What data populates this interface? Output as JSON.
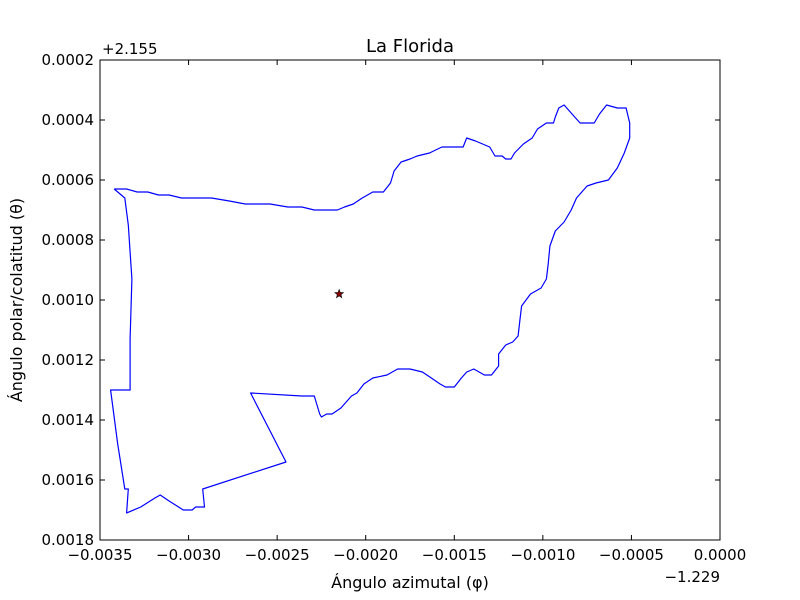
{
  "chart_data": {
    "type": "line",
    "title": "La Florida",
    "xlabel": "Ángulo azimutal (φ)",
    "ylabel": "Ángulo polar/colatitud (θ)",
    "x_offset_label": "−1.229",
    "y_offset_label": "+2.155",
    "xlim": [
      -0.0035,
      0.0
    ],
    "ylim": [
      0.0002,
      0.0018
    ],
    "y_inverted": true,
    "grid": false,
    "x_ticks": [
      -0.0035,
      -0.003,
      -0.0025,
      -0.002,
      -0.0015,
      -0.001,
      -0.0005,
      0.0
    ],
    "x_tick_labels": [
      "−0.0035",
      "−0.0030",
      "−0.0025",
      "−0.0020",
      "−0.0015",
      "−0.0010",
      "−0.0005",
      "0.0000"
    ],
    "y_ticks": [
      0.0002,
      0.0004,
      0.0006,
      0.0008,
      0.001,
      0.0012,
      0.0014,
      0.0016,
      0.0018
    ],
    "y_tick_labels": [
      "0.0002",
      "0.0004",
      "0.0006",
      "0.0008",
      "0.0010",
      "0.0012",
      "0.0014",
      "0.0016",
      "0.0018"
    ],
    "boundary_color": "#0000ff",
    "marker_color": "#8b0000",
    "boundary": [
      [
        -0.00342,
        0.00063
      ],
      [
        -0.00336,
        0.00066
      ],
      [
        -0.00334,
        0.00075
      ],
      [
        -0.00332,
        0.00093
      ],
      [
        -0.00333,
        0.00113
      ],
      [
        -0.00333,
        0.0013
      ],
      [
        -0.00344,
        0.0013
      ],
      [
        -0.0034,
        0.00148
      ],
      [
        -0.00336,
        0.00163
      ],
      [
        -0.00334,
        0.00163
      ],
      [
        -0.00335,
        0.00171
      ],
      [
        -0.00327,
        0.00169
      ],
      [
        -0.00319,
        0.00166
      ],
      [
        -0.00316,
        0.00165
      ],
      [
        -0.00311,
        0.00167
      ],
      [
        -0.00303,
        0.0017
      ],
      [
        -0.00298,
        0.0017
      ],
      [
        -0.00296,
        0.00169
      ],
      [
        -0.00291,
        0.00169
      ],
      [
        -0.00292,
        0.00163
      ],
      [
        -0.00245,
        0.00154
      ],
      [
        -0.00265,
        0.00131
      ],
      [
        -0.00236,
        0.00132
      ],
      [
        -0.00229,
        0.00132
      ],
      [
        -0.00228,
        0.00134
      ],
      [
        -0.00226,
        0.00138
      ],
      [
        -0.00225,
        0.00139
      ],
      [
        -0.00222,
        0.00138
      ],
      [
        -0.00219,
        0.00138
      ],
      [
        -0.00214,
        0.00136
      ],
      [
        -0.00208,
        0.00132
      ],
      [
        -0.00205,
        0.00131
      ],
      [
        -0.00201,
        0.00128
      ],
      [
        -0.00196,
        0.00126
      ],
      [
        -0.00188,
        0.00125
      ],
      [
        -0.00182,
        0.00123
      ],
      [
        -0.00175,
        0.00123
      ],
      [
        -0.00168,
        0.00124
      ],
      [
        -0.00163,
        0.00126
      ],
      [
        -0.00158,
        0.00128
      ],
      [
        -0.00155,
        0.00129
      ],
      [
        -0.0015,
        0.00129
      ],
      [
        -0.00146,
        0.00126
      ],
      [
        -0.00143,
        0.00124
      ],
      [
        -0.00139,
        0.00123
      ],
      [
        -0.00133,
        0.00125
      ],
      [
        -0.00129,
        0.00125
      ],
      [
        -0.00125,
        0.00122
      ],
      [
        -0.00125,
        0.00118
      ],
      [
        -0.00121,
        0.00115
      ],
      [
        -0.00117,
        0.00114
      ],
      [
        -0.00114,
        0.00112
      ],
      [
        -0.00113,
        0.00107
      ],
      [
        -0.00112,
        0.00102
      ],
      [
        -0.00107,
        0.00098
      ],
      [
        -0.00101,
        0.00096
      ],
      [
        -0.00098,
        0.00093
      ],
      [
        -0.00097,
        0.00088
      ],
      [
        -0.00096,
        0.00082
      ],
      [
        -0.00093,
        0.00077
      ],
      [
        -0.00088,
        0.00074
      ],
      [
        -0.00084,
        0.0007
      ],
      [
        -0.00081,
        0.00066
      ],
      [
        -0.00075,
        0.00062
      ],
      [
        -0.0007,
        0.00061
      ],
      [
        -0.00063,
        0.0006
      ],
      [
        -0.00058,
        0.00056
      ],
      [
        -0.00054,
        0.00051
      ],
      [
        -0.00051,
        0.00046
      ],
      [
        -0.00051,
        0.00041
      ],
      [
        -0.00053,
        0.00036
      ],
      [
        -0.00058,
        0.00036
      ],
      [
        -0.00064,
        0.00035
      ],
      [
        -0.00068,
        0.00038
      ],
      [
        -0.00071,
        0.00041
      ],
      [
        -0.00079,
        0.00041
      ],
      [
        -0.00082,
        0.00039
      ],
      [
        -0.00085,
        0.00037
      ],
      [
        -0.00088,
        0.00035
      ],
      [
        -0.00091,
        0.00036
      ],
      [
        -0.00093,
        0.00039
      ],
      [
        -0.00094,
        0.00041
      ],
      [
        -0.00098,
        0.00041
      ],
      [
        -0.00103,
        0.00043
      ],
      [
        -0.00106,
        0.00046
      ],
      [
        -0.00111,
        0.00048
      ],
      [
        -0.00116,
        0.00051
      ],
      [
        -0.00118,
        0.00053
      ],
      [
        -0.00121,
        0.00053
      ],
      [
        -0.00123,
        0.00052
      ],
      [
        -0.00127,
        0.00052
      ],
      [
        -0.0013,
        0.00049
      ],
      [
        -0.00134,
        0.00048
      ],
      [
        -0.00138,
        0.00047
      ],
      [
        -0.00143,
        0.00046
      ],
      [
        -0.00145,
        0.00049
      ],
      [
        -0.00147,
        0.00049
      ],
      [
        -0.00151,
        0.00049
      ],
      [
        -0.00157,
        0.00049
      ],
      [
        -0.00164,
        0.00051
      ],
      [
        -0.00171,
        0.00052
      ],
      [
        -0.00175,
        0.00053
      ],
      [
        -0.0018,
        0.00054
      ],
      [
        -0.00184,
        0.00057
      ],
      [
        -0.00186,
        0.00061
      ],
      [
        -0.0019,
        0.00064
      ],
      [
        -0.00196,
        0.00064
      ],
      [
        -0.00202,
        0.00066
      ],
      [
        -0.00207,
        0.00068
      ],
      [
        -0.00212,
        0.00069
      ],
      [
        -0.00216,
        0.0007
      ],
      [
        -0.00222,
        0.0007
      ],
      [
        -0.00229,
        0.0007
      ],
      [
        -0.00236,
        0.00069
      ],
      [
        -0.00244,
        0.00069
      ],
      [
        -0.00254,
        0.00068
      ],
      [
        -0.00262,
        0.00068
      ],
      [
        -0.00268,
        0.00068
      ],
      [
        -0.00277,
        0.00067
      ],
      [
        -0.00287,
        0.00066
      ],
      [
        -0.00296,
        0.00066
      ],
      [
        -0.00304,
        0.00066
      ],
      [
        -0.00311,
        0.00065
      ],
      [
        -0.00317,
        0.00065
      ],
      [
        -0.00323,
        0.00064
      ],
      [
        -0.00329,
        0.00064
      ],
      [
        -0.00335,
        0.00063
      ],
      [
        -0.00342,
        0.00063
      ]
    ],
    "marker": {
      "x": -0.00215,
      "y": 0.00098,
      "symbol": "star"
    }
  }
}
